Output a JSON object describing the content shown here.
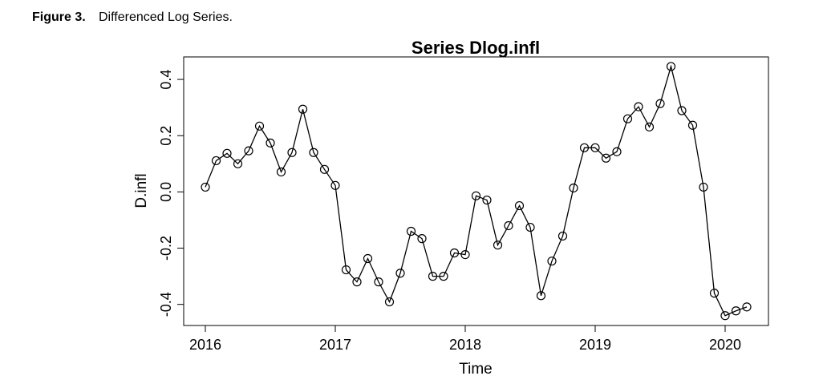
{
  "caption": {
    "label": "Figure 3.",
    "text": "Differenced Log Series."
  },
  "chart_data": {
    "type": "line",
    "title": "Series Dlog.infl",
    "x_label": "Time",
    "y_label": "D.infl",
    "x": [
      2016,
      2016.0833,
      2016.1667,
      2016.25,
      2016.3333,
      2016.4167,
      2016.5,
      2016.5833,
      2016.6667,
      2016.75,
      2016.8333,
      2016.9167,
      2017,
      2017.0833,
      2017.1667,
      2017.25,
      2017.3333,
      2017.4167,
      2017.5,
      2017.5833,
      2017.6667,
      2017.75,
      2017.8333,
      2017.9167,
      2018,
      2018.0833,
      2018.1667,
      2018.25,
      2018.3333,
      2018.4167,
      2018.5,
      2018.5833,
      2018.6667,
      2018.75,
      2018.8333,
      2018.9167,
      2019,
      2019.0833,
      2019.1667,
      2019.25,
      2019.3333,
      2019.4167,
      2019.5,
      2019.5833,
      2019.6667,
      2019.75,
      2019.8333,
      2019.9167,
      2020,
      2020.0833,
      2020.1667
    ],
    "series": [
      {
        "name": "Dlog.infl",
        "color": "#000000",
        "values": [
          0.017,
          0.111,
          0.137,
          0.1,
          0.146,
          0.234,
          0.174,
          0.071,
          0.14,
          0.294,
          0.14,
          0.08,
          0.023,
          -0.277,
          -0.32,
          -0.237,
          -0.32,
          -0.391,
          -0.289,
          -0.14,
          -0.166,
          -0.3,
          -0.3,
          -0.217,
          -0.223,
          -0.014,
          -0.029,
          -0.189,
          -0.12,
          -0.049,
          -0.126,
          -0.369,
          -0.246,
          -0.157,
          0.014,
          0.157,
          0.157,
          0.12,
          0.143,
          0.26,
          0.303,
          0.231,
          0.314,
          0.446,
          0.289,
          0.237,
          0.017,
          -0.36,
          -0.44,
          -0.423,
          -0.409
        ]
      }
    ],
    "xlim": [
      2015.8333,
      2020.3333
    ],
    "xticks": [
      2016,
      2017,
      2018,
      2019,
      2020
    ],
    "ylim": [
      -0.475,
      0.48
    ],
    "yticks": [
      -0.4,
      -0.2,
      {
        "value": 0,
        "label": "0.0"
      },
      0.2,
      0.4
    ],
    "grid": false,
    "markers": "circle"
  }
}
